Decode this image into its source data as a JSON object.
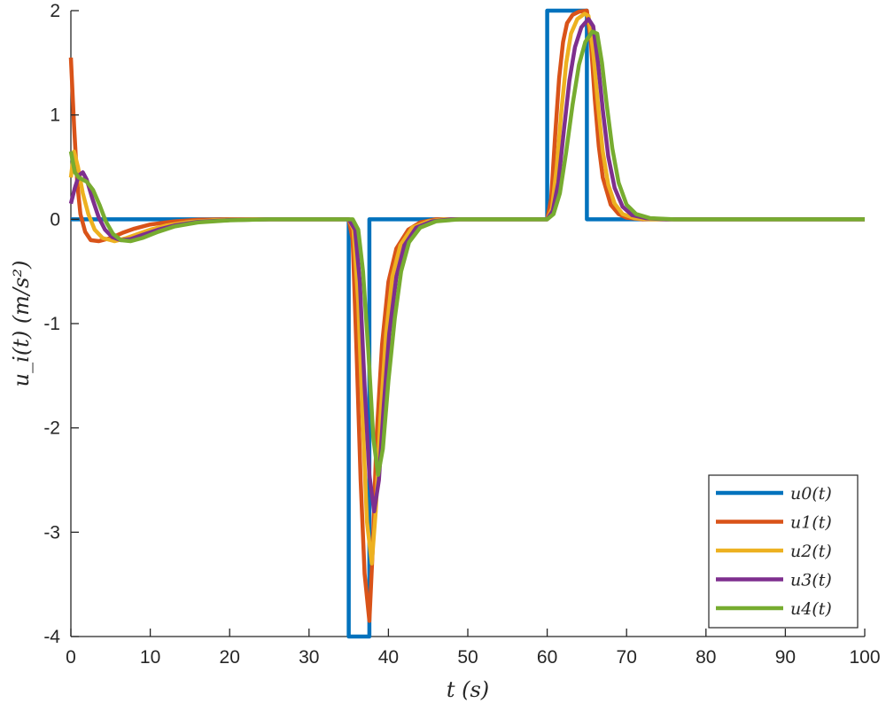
{
  "chart_data": {
    "type": "line",
    "title": "",
    "xlabel": "t (s)",
    "ylabel": "u_i(t) (m/s²)",
    "xlim": [
      0,
      100
    ],
    "ylim": [
      -4,
      2
    ],
    "xticks": [
      0,
      10,
      20,
      30,
      40,
      50,
      60,
      70,
      80,
      90,
      100
    ],
    "yticks": [
      -4,
      -3,
      -2,
      -1,
      0,
      1,
      2
    ],
    "xtick_labels": [
      "0",
      "10",
      "20",
      "30",
      "40",
      "50",
      "60",
      "70",
      "80",
      "90",
      "100"
    ],
    "ytick_labels": [
      "-4",
      "-3",
      "-2",
      "-1",
      "0",
      "1",
      "2"
    ],
    "grid": false,
    "legend_position": "bottom-right",
    "series": [
      {
        "name": "u0(t)",
        "color": "#0072BD",
        "points": [
          [
            0,
            0
          ],
          [
            35,
            0
          ],
          [
            35,
            -4
          ],
          [
            37.6,
            -4
          ],
          [
            37.6,
            0
          ],
          [
            60,
            0
          ],
          [
            60,
            2
          ],
          [
            65,
            2
          ],
          [
            65,
            0
          ],
          [
            100,
            0
          ]
        ]
      },
      {
        "name": "u1(t)",
        "color": "#D95319",
        "points": [
          [
            0,
            1.55
          ],
          [
            0.4,
            0.9
          ],
          [
            0.8,
            0.35
          ],
          [
            1.2,
            0.05
          ],
          [
            1.8,
            -0.12
          ],
          [
            2.5,
            -0.2
          ],
          [
            3.5,
            -0.21
          ],
          [
            5,
            -0.18
          ],
          [
            6.5,
            -0.13
          ],
          [
            8,
            -0.09
          ],
          [
            10,
            -0.05
          ],
          [
            13,
            -0.02
          ],
          [
            16,
            -0.005
          ],
          [
            20,
            0
          ],
          [
            35,
            0
          ],
          [
            35.5,
            -0.2
          ],
          [
            36,
            -1.3
          ],
          [
            36.5,
            -2.5
          ],
          [
            37,
            -3.4
          ],
          [
            37.6,
            -3.85
          ],
          [
            38,
            -3.2
          ],
          [
            38.5,
            -2.1
          ],
          [
            39.2,
            -1.2
          ],
          [
            40,
            -0.6
          ],
          [
            41,
            -0.28
          ],
          [
            42.5,
            -0.1
          ],
          [
            44,
            -0.03
          ],
          [
            46,
            0
          ],
          [
            60,
            0
          ],
          [
            60.5,
            0.2
          ],
          [
            61,
            0.8
          ],
          [
            61.5,
            1.35
          ],
          [
            62,
            1.7
          ],
          [
            62.5,
            1.88
          ],
          [
            63.2,
            1.96
          ],
          [
            64,
            1.99
          ],
          [
            65,
            2.0
          ],
          [
            65.5,
            1.7
          ],
          [
            66,
            1.15
          ],
          [
            66.5,
            0.7
          ],
          [
            67,
            0.4
          ],
          [
            68,
            0.14
          ],
          [
            69,
            0.05
          ],
          [
            70,
            0.015
          ],
          [
            72,
            0
          ],
          [
            100,
            0
          ]
        ]
      },
      {
        "name": "u2(t)",
        "color": "#EDB120",
        "points": [
          [
            0,
            0.4
          ],
          [
            0.4,
            0.65
          ],
          [
            0.9,
            0.5
          ],
          [
            1.5,
            0.25
          ],
          [
            2.2,
            0.05
          ],
          [
            3,
            -0.1
          ],
          [
            4,
            -0.18
          ],
          [
            5.5,
            -0.21
          ],
          [
            7,
            -0.18
          ],
          [
            8.5,
            -0.14
          ],
          [
            10,
            -0.1
          ],
          [
            12,
            -0.06
          ],
          [
            15,
            -0.025
          ],
          [
            18,
            -0.01
          ],
          [
            22,
            0
          ],
          [
            35,
            0
          ],
          [
            35.6,
            -0.1
          ],
          [
            36.2,
            -0.8
          ],
          [
            36.8,
            -2.0
          ],
          [
            37.3,
            -2.9
          ],
          [
            37.9,
            -3.3
          ],
          [
            38.4,
            -2.8
          ],
          [
            39,
            -1.9
          ],
          [
            39.7,
            -1.1
          ],
          [
            40.5,
            -0.55
          ],
          [
            41.5,
            -0.25
          ],
          [
            43,
            -0.08
          ],
          [
            45,
            -0.02
          ],
          [
            47,
            0
          ],
          [
            60,
            0
          ],
          [
            60.6,
            0.1
          ],
          [
            61.2,
            0.5
          ],
          [
            61.8,
            1.05
          ],
          [
            62.4,
            1.5
          ],
          [
            63,
            1.78
          ],
          [
            63.8,
            1.92
          ],
          [
            64.7,
            1.97
          ],
          [
            65.2,
            1.95
          ],
          [
            65.8,
            1.6
          ],
          [
            66.4,
            1.1
          ],
          [
            67,
            0.65
          ],
          [
            67.7,
            0.33
          ],
          [
            68.5,
            0.15
          ],
          [
            69.5,
            0.05
          ],
          [
            71,
            0.01
          ],
          [
            73,
            0
          ],
          [
            100,
            0
          ]
        ]
      },
      {
        "name": "u3(t)",
        "color": "#7E2F8E",
        "points": [
          [
            0,
            0.15
          ],
          [
            0.5,
            0.3
          ],
          [
            1,
            0.42
          ],
          [
            1.5,
            0.45
          ],
          [
            2,
            0.38
          ],
          [
            2.7,
            0.2
          ],
          [
            3.5,
            0.02
          ],
          [
            4.3,
            -0.1
          ],
          [
            5.2,
            -0.17
          ],
          [
            6.3,
            -0.2
          ],
          [
            7.5,
            -0.19
          ],
          [
            9,
            -0.15
          ],
          [
            11,
            -0.1
          ],
          [
            13,
            -0.06
          ],
          [
            16,
            -0.025
          ],
          [
            20,
            -0.008
          ],
          [
            25,
            0
          ],
          [
            35,
            0
          ],
          [
            35.8,
            -0.1
          ],
          [
            36.4,
            -0.6
          ],
          [
            37,
            -1.6
          ],
          [
            37.6,
            -2.45
          ],
          [
            38.2,
            -2.8
          ],
          [
            38.8,
            -2.5
          ],
          [
            39.4,
            -1.8
          ],
          [
            40.1,
            -1.1
          ],
          [
            41,
            -0.55
          ],
          [
            42,
            -0.25
          ],
          [
            43.5,
            -0.08
          ],
          [
            45.5,
            -0.02
          ],
          [
            48,
            0
          ],
          [
            60,
            0
          ],
          [
            60.7,
            0.08
          ],
          [
            61.4,
            0.35
          ],
          [
            62.1,
            0.85
          ],
          [
            62.8,
            1.33
          ],
          [
            63.5,
            1.65
          ],
          [
            64.3,
            1.84
          ],
          [
            65.2,
            1.92
          ],
          [
            65.8,
            1.85
          ],
          [
            66.4,
            1.5
          ],
          [
            67,
            1.05
          ],
          [
            67.7,
            0.6
          ],
          [
            68.5,
            0.3
          ],
          [
            69.5,
            0.12
          ],
          [
            70.7,
            0.04
          ],
          [
            72.5,
            0.01
          ],
          [
            75,
            0
          ],
          [
            100,
            0
          ]
        ]
      },
      {
        "name": "u4(t)",
        "color": "#77AC30",
        "points": [
          [
            0,
            0.65
          ],
          [
            0.5,
            0.45
          ],
          [
            1,
            0.4
          ],
          [
            2,
            0.36
          ],
          [
            2.8,
            0.28
          ],
          [
            3.6,
            0.14
          ],
          [
            4.4,
            -0.02
          ],
          [
            5.3,
            -0.14
          ],
          [
            6.3,
            -0.2
          ],
          [
            7.5,
            -0.21
          ],
          [
            9,
            -0.18
          ],
          [
            11,
            -0.12
          ],
          [
            13,
            -0.07
          ],
          [
            16,
            -0.03
          ],
          [
            20,
            -0.01
          ],
          [
            25,
            0
          ],
          [
            35.5,
            0
          ],
          [
            36.2,
            -0.1
          ],
          [
            36.8,
            -0.5
          ],
          [
            37.5,
            -1.3
          ],
          [
            38.1,
            -2.1
          ],
          [
            38.7,
            -2.45
          ],
          [
            39.3,
            -2.2
          ],
          [
            40,
            -1.55
          ],
          [
            40.8,
            -0.95
          ],
          [
            41.6,
            -0.5
          ],
          [
            42.6,
            -0.22
          ],
          [
            44,
            -0.08
          ],
          [
            46,
            -0.02
          ],
          [
            49,
            0
          ],
          [
            60,
            0
          ],
          [
            60.8,
            0.05
          ],
          [
            61.6,
            0.25
          ],
          [
            62.4,
            0.65
          ],
          [
            63.2,
            1.1
          ],
          [
            64,
            1.48
          ],
          [
            64.8,
            1.7
          ],
          [
            65.7,
            1.8
          ],
          [
            66.3,
            1.78
          ],
          [
            66.9,
            1.5
          ],
          [
            67.5,
            1.1
          ],
          [
            68.2,
            0.68
          ],
          [
            69,
            0.35
          ],
          [
            70,
            0.14
          ],
          [
            71.2,
            0.05
          ],
          [
            73,
            0.01
          ],
          [
            76,
            0
          ],
          [
            100,
            0
          ]
        ]
      }
    ]
  }
}
